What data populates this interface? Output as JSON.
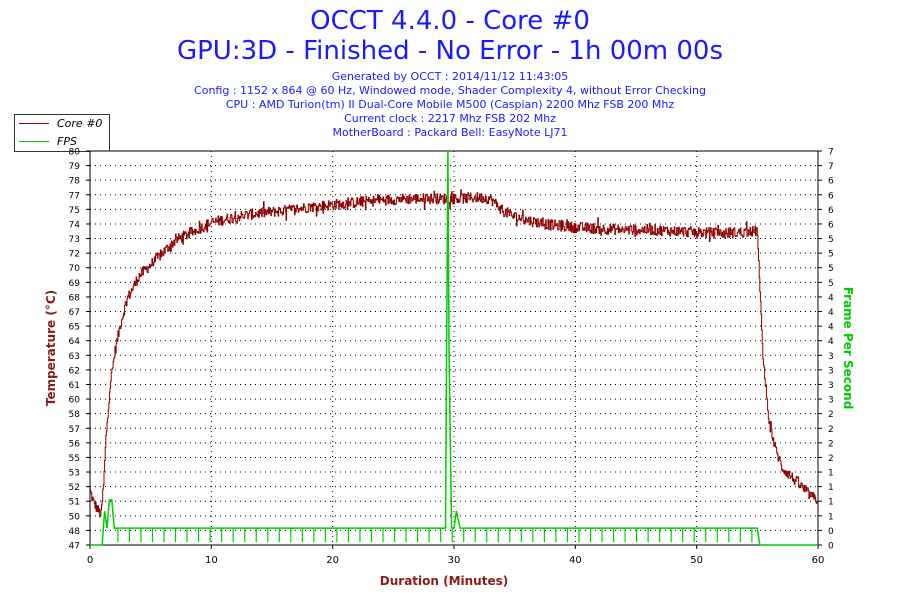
{
  "header": {
    "title": "OCCT 4.4.0 - Core #0",
    "subtitle": "GPU:3D - Finished - No Error - 1h 00m 00s",
    "info": [
      "Generated by OCCT : 2014/11/12 11:43:05",
      "Config : 1152 x 864 @ 60 Hz, Windowed mode, Shader Complexity 4, without Error Checking",
      "CPU : AMD Turion(tm) II Dual-Core Mobile M500 (Caspian) 2200 Mhz FSB 200 Mhz",
      "Current clock : 2217 Mhz FSB 202 Mhz",
      "MotherBoard : Packard Bell: EasyNote LJ71"
    ]
  },
  "colors": {
    "title": "#1a1aff",
    "temperature_series": "#8b0000",
    "fps_series": "#00cc00",
    "axis_label_left": "#8b1a1a",
    "axis_label_right": "#00cc00",
    "plot_background": "#ffffff",
    "grid": "#000000"
  },
  "chart_data": {
    "type": "line",
    "xlabel": "Duration (Minutes)",
    "ylabel": "Temperature (°C)",
    "y2label": "Frame Per Second",
    "xlim": [
      0,
      60
    ],
    "ylim": [
      47,
      80
    ],
    "y2lim": [
      0,
      7
    ],
    "x_ticks": [
      "0",
      "10",
      "20",
      "30",
      "40",
      "50",
      "60"
    ],
    "y_ticks": [
      "47",
      "48",
      "50",
      "51",
      "52",
      "53",
      "55",
      "56",
      "57",
      "58",
      "60",
      "61",
      "62",
      "63",
      "64",
      "65",
      "67",
      "68",
      "69",
      "70",
      "72",
      "73",
      "74",
      "75",
      "77",
      "78",
      "79",
      "80"
    ],
    "y2_ticks": [
      "0",
      "0",
      "1",
      "1",
      "1",
      "1",
      "2",
      "2",
      "2",
      "2",
      "3",
      "3",
      "3",
      "3",
      "4",
      "4",
      "4",
      "4",
      "5",
      "5",
      "5",
      "5",
      "6",
      "6",
      "6",
      "6",
      "7",
      "7"
    ],
    "grid": true,
    "legend_position": "top-left",
    "legend": [
      "Core #0",
      "FPS"
    ],
    "series": [
      {
        "name": "Core #0",
        "x": [
          0,
          0.3,
          0.6,
          0.9,
          1.1,
          1.3,
          1.6,
          2,
          2.5,
          3,
          4,
          5,
          6,
          7,
          8,
          9,
          10,
          12,
          14,
          16,
          18,
          20,
          22,
          24,
          26,
          28,
          30,
          32,
          33,
          34,
          35,
          36,
          38,
          40,
          42,
          44,
          46,
          48,
          50,
          52,
          54,
          55,
          55.2,
          55.5,
          56,
          56.5,
          57,
          57.5,
          58,
          58.5,
          59,
          59.5,
          60
        ],
        "y": [
          51.5,
          50.5,
          50.0,
          49.5,
          52.0,
          56.0,
          60.0,
          63.0,
          65.5,
          67.5,
          69.5,
          70.5,
          71.5,
          72.5,
          73.0,
          73.5,
          74.0,
          74.5,
          74.8,
          75.0,
          75.3,
          75.5,
          75.7,
          75.9,
          76.0,
          76.0,
          76.0,
          76.1,
          76.0,
          75.0,
          74.5,
          74.2,
          73.8,
          73.6,
          73.5,
          73.4,
          73.4,
          73.3,
          73.2,
          73.1,
          73.2,
          73.3,
          68.0,
          62.0,
          57.0,
          55.0,
          53.5,
          53.0,
          52.5,
          52.0,
          51.5,
          51.0,
          50.8
        ]
      },
      {
        "name": "FPS",
        "x": [
          0,
          1,
          1.2,
          1.4,
          1.6,
          1.8,
          2,
          2.5,
          5,
          10,
          15,
          20,
          25,
          29,
          29.3,
          29.5,
          29.6,
          29.8,
          30,
          30.2,
          30.5,
          35,
          40,
          45,
          50,
          55,
          55.2,
          60
        ],
        "y": [
          0,
          0,
          0.6,
          0.3,
          0.8,
          0.8,
          0.3,
          0.3,
          0.3,
          0.3,
          0.3,
          0.3,
          0.3,
          0.3,
          0.3,
          7.0,
          3.3,
          0.3,
          0.3,
          0.6,
          0.3,
          0.3,
          0.3,
          0.3,
          0.3,
          0.3,
          0,
          0
        ]
      }
    ]
  }
}
